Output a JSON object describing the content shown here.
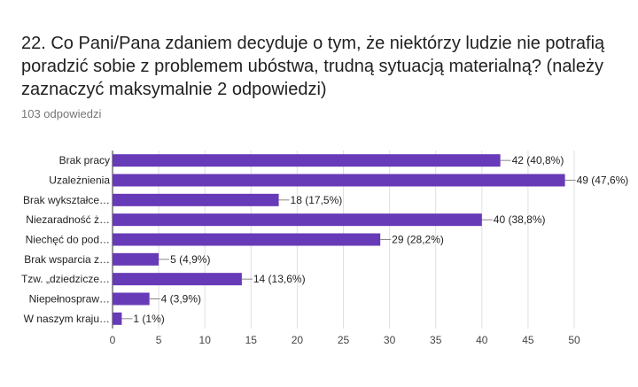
{
  "question": {
    "title": "22. Co Pani/Pana zdaniem decyduje o tym, że niektórzy ludzie nie potrafią poradzić sobie z problemem ubóstwa, trudną sytuacją materialną? (należy zaznaczyć maksymalnie 2 odpowiedzi)",
    "response_count": "103 odpowiedzi"
  },
  "chart_data": {
    "type": "bar",
    "orientation": "horizontal",
    "categories": [
      "Brak pracy",
      "Uzależnienia",
      "Brak wykształce…",
      "Niezaradność ż…",
      "Niechęć do pod…",
      "Brak wsparcia z…",
      "Tzw. „dziedzicze…",
      "Niepełnospraw…",
      "W naszym kraju…"
    ],
    "values": [
      42,
      49,
      18,
      40,
      29,
      5,
      14,
      4,
      1
    ],
    "value_labels": [
      "42 (40,8%)",
      "49 (47,6%)",
      "18 (17,5%)",
      "40 (38,8%)",
      "29 (28,2%)",
      "5 (4,9%)",
      "14 (13,6%)",
      "4 (3,9%)",
      "1 (1%)"
    ],
    "xlim": [
      0,
      50
    ],
    "xticks": [
      "0",
      "5",
      "10",
      "15",
      "20",
      "25",
      "30",
      "35",
      "40",
      "45",
      "50"
    ],
    "grid": true,
    "bar_color": "#673ab7"
  }
}
